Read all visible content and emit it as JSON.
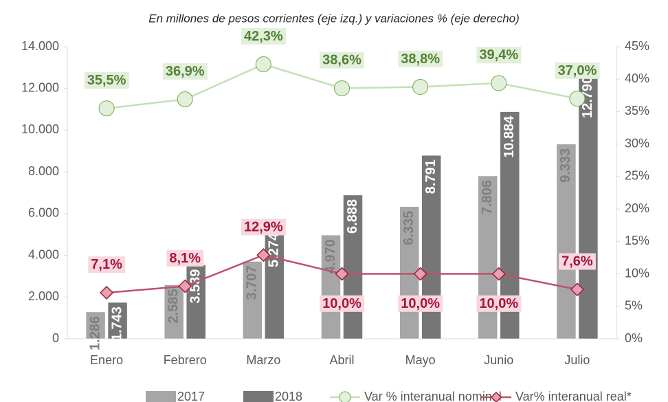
{
  "chart_data": {
    "type": "bar",
    "title": "En millones de pesos corrientes (eje izq.) y variaciones % (eje derecho)",
    "categories": [
      "Enero",
      "Febrero",
      "Marzo",
      "Abril",
      "Mayo",
      "Junio",
      "Julio"
    ],
    "ylim": [
      0,
      14000
    ],
    "yticks": [
      0,
      {
        "value": 2000,
        "label": "2.000"
      },
      {
        "value": 4000,
        "label": "4.000"
      },
      {
        "value": 6000,
        "label": "6.000"
      },
      {
        "value": 8000,
        "label": "8.000"
      },
      {
        "value": 10000,
        "label": "10.000"
      },
      {
        "value": 12000,
        "label": "12.000"
      },
      {
        "value": 14000,
        "label": "14.000"
      }
    ],
    "y2lim": [
      0,
      45
    ],
    "y2ticks": [
      {
        "value": 0,
        "label": "0%"
      },
      {
        "value": 5,
        "label": "5%"
      },
      {
        "value": 10,
        "label": "10%"
      },
      {
        "value": 15,
        "label": "15%"
      },
      {
        "value": 20,
        "label": "20%"
      },
      {
        "value": 25,
        "label": "25%"
      },
      {
        "value": 30,
        "label": "30%"
      },
      {
        "value": 35,
        "label": "35%"
      },
      {
        "value": 40,
        "label": "40%"
      },
      {
        "value": 45,
        "label": "45%"
      }
    ],
    "grid": false,
    "legend": "bottom",
    "series": [
      {
        "name": "2017",
        "type": "bar",
        "color": "#a6a6a6",
        "label_color": "#7f7f7f",
        "values": [
          1286,
          2585,
          3707,
          4970,
          6335,
          7806,
          9333
        ],
        "value_labels": [
          "1.286",
          "2.585",
          "3.707",
          "4.970",
          "6.335",
          "7.806",
          "9.333"
        ]
      },
      {
        "name": "2018",
        "type": "bar",
        "color": "#767676",
        "label_color": "#ffffff",
        "values": [
          1743,
          3539,
          5274,
          6888,
          8791,
          10884,
          12790
        ],
        "value_labels": [
          "1.743",
          "3.539",
          "5.274",
          "6.888",
          "8.791",
          "10.884",
          "12.790"
        ]
      },
      {
        "name": "Var % interanual nominal",
        "type": "line",
        "axis": "y2",
        "marker": "circle",
        "color": "#c5e0b4",
        "marker_color": "#70ad47",
        "label_color": "#548235",
        "label_bg": "#e2efda",
        "values": [
          35.5,
          36.9,
          42.3,
          38.6,
          38.8,
          39.4,
          37.0
        ],
        "value_labels": [
          "35,5%",
          "36,9%",
          "42,3%",
          "38,6%",
          "38,8%",
          "39,4%",
          "37,0%"
        ]
      },
      {
        "name": "Var% interanual real*",
        "type": "line",
        "axis": "y2",
        "marker": "diamond",
        "color": "#c0506a",
        "marker_color": "#a0203c",
        "label_color": "#a5163b",
        "label_bg": "#f8d7df",
        "values": [
          7.1,
          8.1,
          12.9,
          10.0,
          10.0,
          10.0,
          7.6
        ],
        "value_labels": [
          "7,1%",
          "8,1%",
          "12,9%",
          "10,0%",
          "10,0%",
          "10,0%",
          "7,6%"
        ]
      }
    ]
  }
}
